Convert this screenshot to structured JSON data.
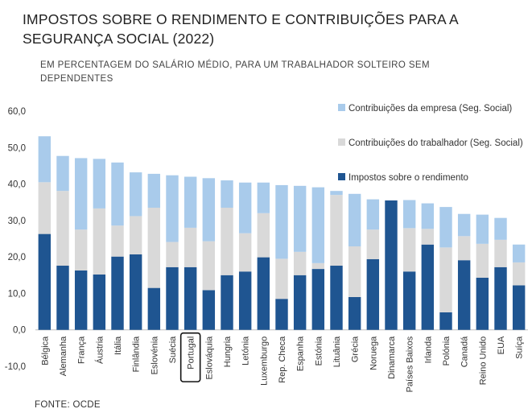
{
  "title": "IMPOSTOS SOBRE O RENDIMENTO E CONTRIBUIÇÕES PARA A SEGURANÇA SOCIAL (2022)",
  "subtitle": "EM PERCENTAGEM DO SALÁRIO MÉDIO, PARA UM TRABALHADOR SOLTEIRO SEM DEPENDENTES",
  "source": "FONTE: OCDE",
  "chart_data": {
    "type": "bar",
    "stacked": true,
    "categories": [
      "Bélgica",
      "Alemanha",
      "França",
      "Áustria",
      "Itália",
      "Finlândia",
      "Eslovénia",
      "Suécia",
      "Portugal",
      "Eslováquia",
      "Hungria",
      "Letónia",
      "Luxemburgo",
      "Rep. Checa",
      "Espanha",
      "Estónia",
      "Lituânia",
      "Grécia",
      "Noruega",
      "Dinamarca",
      "Países Baixos",
      "Irlanda",
      "Polónia",
      "Canadá",
      "Reino Unido",
      "EUA",
      "Suíça"
    ],
    "highlighted_category": "Portugal",
    "ylim": [
      -10,
      60
    ],
    "yticks": [
      "-10,0",
      "0,0",
      "10,0",
      "20,0",
      "30,0",
      "40,0",
      "50,0",
      "60,0"
    ],
    "ytick_values": [
      -10,
      0,
      10,
      20,
      30,
      40,
      50,
      60
    ],
    "grid": false,
    "legend_position": "top-right",
    "series": [
      {
        "name": "Impostos sobre o rendimento",
        "color": "#1f5591",
        "values": [
          26.3,
          17.6,
          16.3,
          15.2,
          20.1,
          20.7,
          11.5,
          17.2,
          17.2,
          10.9,
          15.0,
          16.0,
          19.9,
          8.5,
          15.0,
          16.7,
          17.6,
          9.0,
          19.4,
          35.5,
          16.0,
          23.4,
          4.8,
          19.1,
          14.3,
          17.2,
          12.2
        ]
      },
      {
        "name": "Contribuições do trabalhador (Seg. Social)",
        "color": "#d9d9d9",
        "values": [
          14.2,
          20.5,
          11.2,
          18.1,
          8.5,
          10.5,
          22.0,
          6.9,
          10.8,
          13.4,
          18.5,
          10.5,
          12.1,
          11.0,
          6.4,
          1.6,
          19.4,
          13.9,
          8.1,
          0.0,
          11.9,
          4.3,
          17.8,
          6.6,
          9.3,
          7.5,
          6.3
        ]
      },
      {
        "name": "Contribuições da empresa (Seg. Social)",
        "color": "#a9cbeb",
        "values": [
          12.6,
          9.6,
          19.6,
          13.6,
          17.3,
          12.0,
          9.3,
          18.3,
          14.0,
          17.3,
          7.5,
          13.9,
          8.4,
          20.2,
          18.1,
          20.8,
          1.1,
          14.4,
          8.3,
          0.0,
          7.7,
          7.0,
          11.1,
          6.1,
          8.0,
          6.0,
          4.9
        ]
      }
    ]
  }
}
